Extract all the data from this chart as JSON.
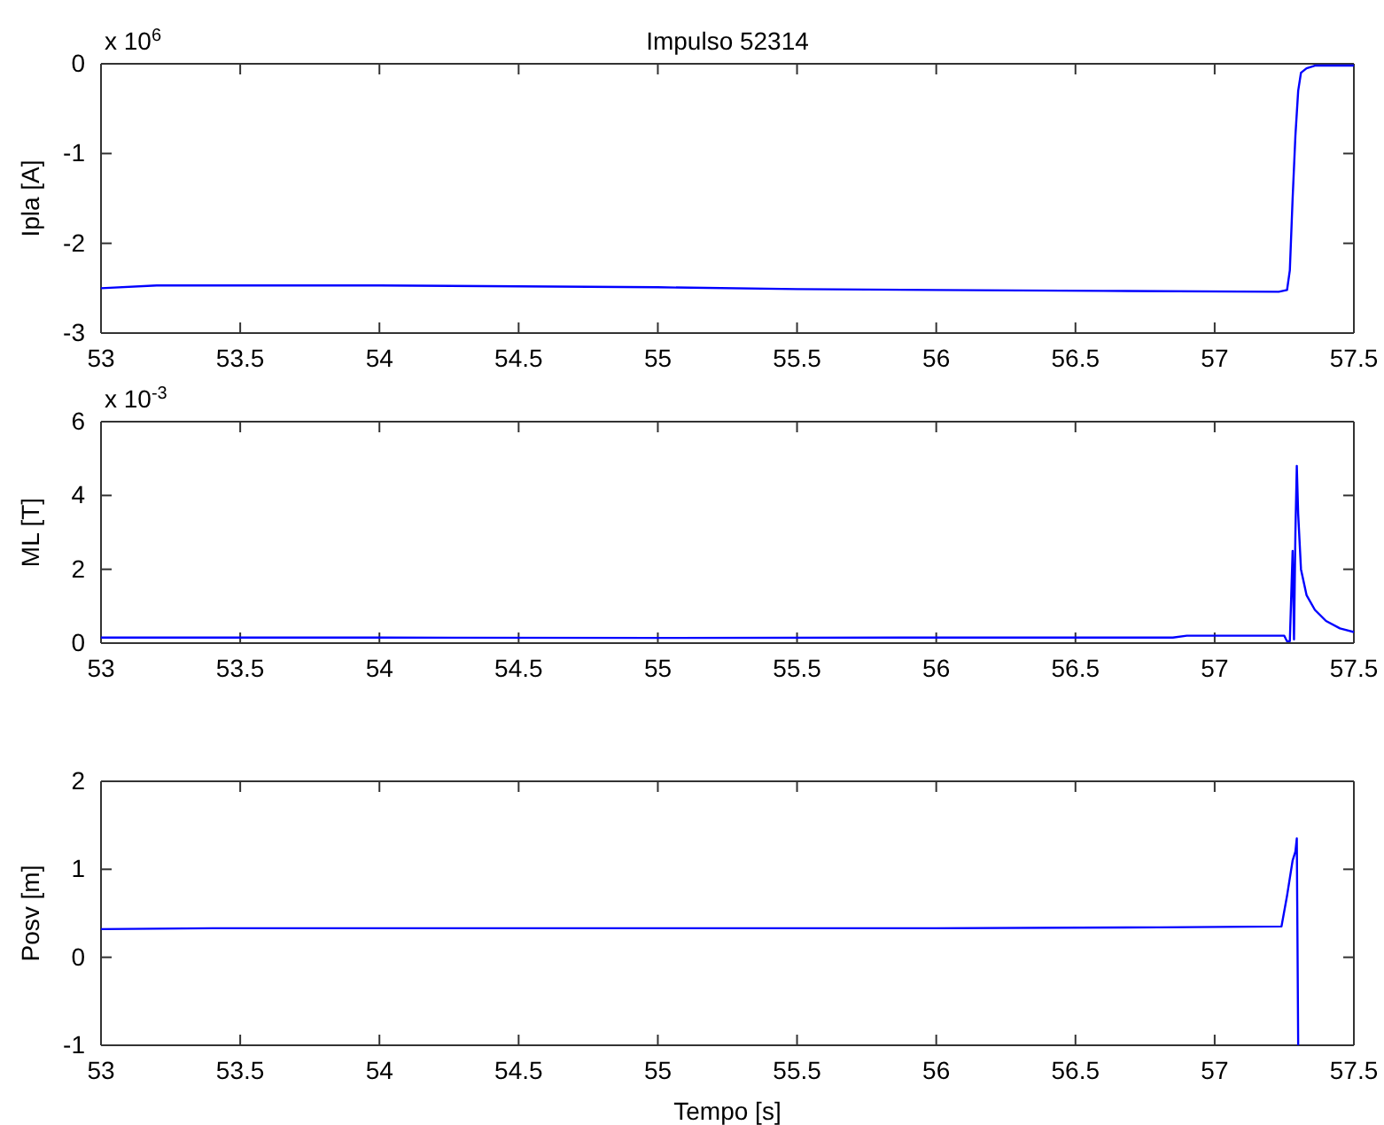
{
  "chart_data": [
    {
      "type": "line",
      "title": "Impulso 52314",
      "ylabel": "Ipla [A]",
      "annotations": [
        "x 10$^{6}$"
      ],
      "xlim": [
        53,
        57.5
      ],
      "xticks": [
        53,
        53.5,
        54,
        54.5,
        55,
        55.5,
        56,
        56.5,
        57,
        57.5
      ],
      "ylim": [
        -3,
        0
      ],
      "yticks": [
        -3,
        -2,
        -1,
        0
      ],
      "series": [
        {
          "color": "#0000ff",
          "x": [
            53,
            53.2,
            54,
            54.5,
            55,
            55.5,
            56,
            56.6,
            57.23,
            57.26,
            57.27,
            57.28,
            57.29,
            57.3,
            57.31,
            57.33,
            57.36,
            57.5
          ],
          "values": [
            -2.5,
            -2.47,
            -2.47,
            -2.48,
            -2.49,
            -2.51,
            -2.52,
            -2.53,
            -2.54,
            -2.52,
            -2.3,
            -1.5,
            -0.8,
            -0.3,
            -0.1,
            -0.05,
            -0.02,
            -0.02
          ]
        }
      ]
    },
    {
      "type": "line",
      "ylabel": "ML [T]",
      "annotations": [
        "x 10$^{-3}$"
      ],
      "xlim": [
        53,
        57.5
      ],
      "xticks": [
        53,
        53.5,
        54,
        54.5,
        55,
        55.5,
        56,
        56.5,
        57,
        57.5
      ],
      "ylim": [
        0,
        6
      ],
      "yticks": [
        0,
        2,
        4,
        6
      ],
      "series": [
        {
          "color": "#0000ff",
          "x": [
            53,
            54,
            55,
            56,
            56.85,
            56.9,
            57.25,
            57.26,
            57.27,
            57.28,
            57.285,
            57.29,
            57.295,
            57.3,
            57.31,
            57.33,
            57.36,
            57.4,
            57.45,
            57.5
          ],
          "values": [
            0.15,
            0.15,
            0.14,
            0.15,
            0.15,
            0.2,
            0.2,
            0.05,
            0.05,
            2.5,
            0.1,
            3,
            4.8,
            3.5,
            2,
            1.3,
            0.9,
            0.6,
            0.4,
            0.3
          ]
        }
      ]
    },
    {
      "type": "line",
      "ylabel": "Posv [m]",
      "xlabel": "Tempo [s]",
      "xlim": [
        53,
        57.5
      ],
      "xticks": [
        53,
        53.5,
        54,
        54.5,
        55,
        55.5,
        56,
        56.5,
        57,
        57.5
      ],
      "ylim": [
        -1,
        2
      ],
      "yticks": [
        -1,
        0,
        1,
        2
      ],
      "series": [
        {
          "color": "#0000ff",
          "x": [
            53,
            53.4,
            54,
            55,
            56,
            56.8,
            57.24,
            57.26,
            57.28,
            57.29,
            57.295,
            57.3
          ],
          "values": [
            0.32,
            0.33,
            0.33,
            0.33,
            0.33,
            0.34,
            0.35,
            0.7,
            1.1,
            1.2,
            1.35,
            -1
          ]
        }
      ]
    }
  ]
}
